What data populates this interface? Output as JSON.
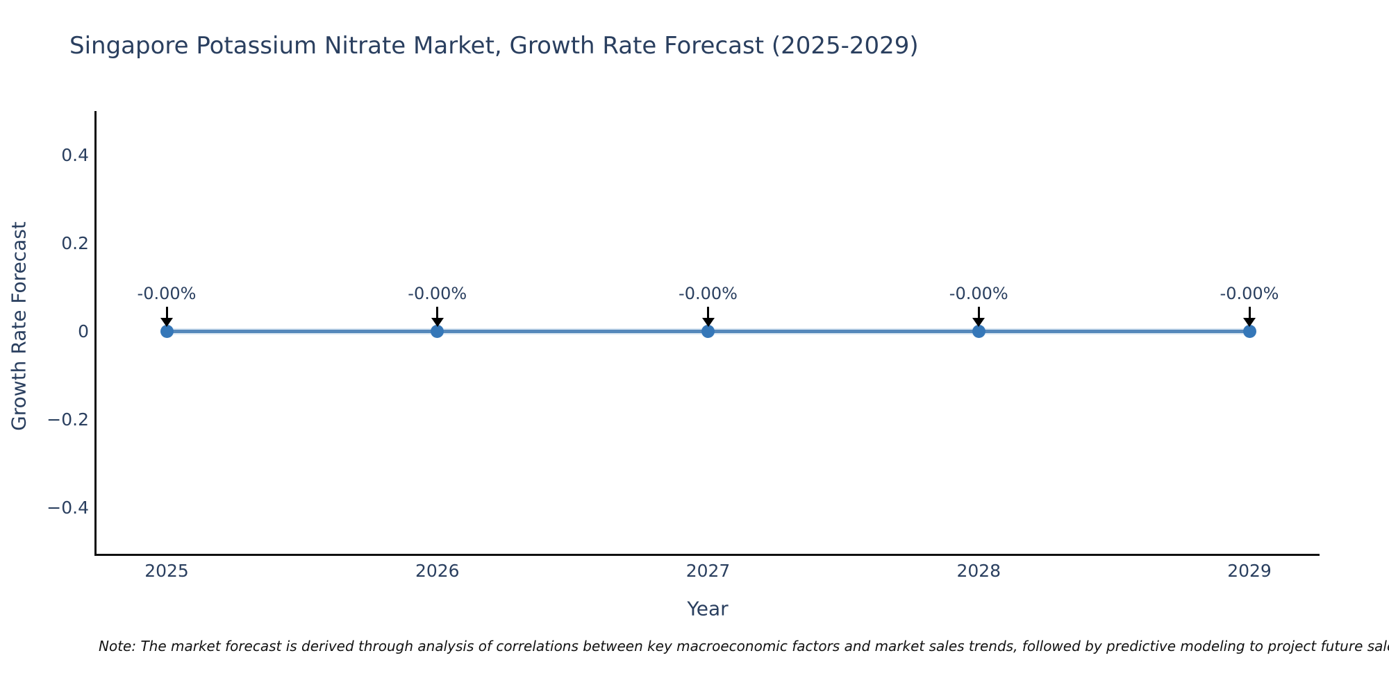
{
  "title": "Singapore Potassium Nitrate Market, Growth Rate Forecast (2025-2029)",
  "note": "Note: The market forecast is derived through analysis of correlations between key macroeconomic factors and market sales trends, followed by predictive modeling to project future sales.",
  "chart_data": {
    "type": "line",
    "title": "Singapore Potassium Nitrate Market, Growth Rate Forecast (2025-2029)",
    "xlabel": "Year",
    "ylabel": "Growth Rate Forecast",
    "x": [
      2025,
      2026,
      2027,
      2028,
      2029
    ],
    "y": [
      0,
      0,
      0,
      0,
      0
    ],
    "point_labels": [
      "-0.00%",
      "-0.00%",
      "-0.00%",
      "-0.00%",
      "-0.00%"
    ],
    "xtick_labels": [
      "2025",
      "2026",
      "2027",
      "2028",
      "2029"
    ],
    "yticks": [
      0.4,
      0.2,
      0,
      -0.2,
      -0.4
    ],
    "ytick_labels": [
      "0.4",
      "0.2",
      "0",
      "−0.2",
      "−0.4"
    ],
    "ylim": [
      -0.51,
      0.5
    ],
    "grid": false,
    "legend": "none",
    "line_color": "#5588bb",
    "marker_color": "#3577b8",
    "arrow_color": "#000000",
    "axis_color": "#0f0f0f",
    "label_color": "#2a3f5f"
  }
}
